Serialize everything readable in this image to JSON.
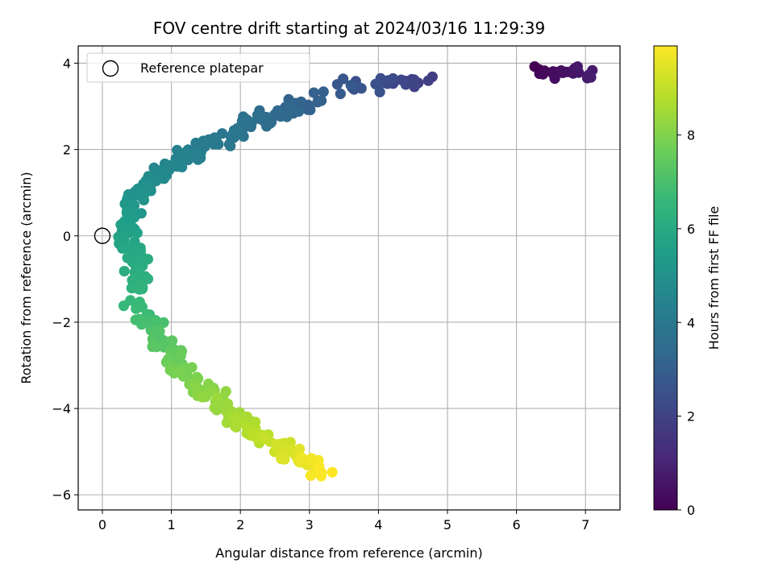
{
  "chart_data": {
    "type": "scatter",
    "title": "FOV centre drift starting at 2024/03/16 11:29:39",
    "xlabel": "Angular distance from reference (arcmin)",
    "ylabel": "Rotation from reference (arcmin)",
    "xlim": [
      -0.35,
      7.5
    ],
    "ylim": [
      -6.35,
      4.4
    ],
    "xticks": [
      0,
      1,
      2,
      3,
      4,
      5,
      6,
      7
    ],
    "yticks": [
      -6,
      -4,
      -2,
      0,
      2,
      4
    ],
    "grid": true,
    "legend": {
      "placement": "top-left",
      "entries": [
        "Reference platepar"
      ]
    },
    "reference_point": {
      "x": 0,
      "y": 0
    },
    "colorbar": {
      "label": "Hours from first FF file",
      "colormap": "viridis",
      "range": [
        0,
        9.9
      ],
      "ticks": [
        0,
        2,
        4,
        6,
        8
      ]
    },
    "colormap_stops": [
      "#440154",
      "#482878",
      "#3e4989",
      "#31688e",
      "#26828e",
      "#1f9e89",
      "#35b779",
      "#6ece58",
      "#b5de2b",
      "#fde725"
    ],
    "segments": [
      {
        "x0": 6.25,
        "y0": 3.8,
        "x1": 7.1,
        "y1": 3.75,
        "h0": 0.0,
        "h1": 0.8,
        "n": 24,
        "sx": 0.12,
        "sy": 0.12
      },
      {
        "x0": 4.75,
        "y0": 3.6,
        "x1": 3.4,
        "y1": 3.45,
        "h0": 1.8,
        "h1": 2.8,
        "n": 28,
        "sx": 0.2,
        "sy": 0.13
      },
      {
        "x0": 3.1,
        "y0": 3.2,
        "x1": 1.2,
        "y1": 1.9,
        "h0": 3.0,
        "h1": 4.3,
        "n": 90,
        "sx": 0.12,
        "sy": 0.15
      },
      {
        "x0": 1.2,
        "y0": 1.9,
        "x1": 0.5,
        "y1": 1.0,
        "h0": 4.3,
        "h1": 5.0,
        "n": 40,
        "sx": 0.12,
        "sy": 0.13
      },
      {
        "x0": 0.5,
        "y0": 1.0,
        "x1": 0.3,
        "y1": -0.2,
        "h0": 5.0,
        "h1": 5.8,
        "n": 45,
        "sx": 0.12,
        "sy": 0.15
      },
      {
        "x0": 0.4,
        "y0": -0.2,
        "x1": 0.6,
        "y1": -1.3,
        "h0": 5.8,
        "h1": 6.4,
        "n": 35,
        "sx": 0.12,
        "sy": 0.13
      },
      {
        "x0": 0.5,
        "y0": -1.6,
        "x1": 1.2,
        "y1": -3.2,
        "h0": 6.6,
        "h1": 7.8,
        "n": 60,
        "sx": 0.15,
        "sy": 0.15
      },
      {
        "x0": 1.2,
        "y0": -3.2,
        "x1": 2.2,
        "y1": -4.6,
        "h0": 7.8,
        "h1": 8.8,
        "n": 70,
        "sx": 0.15,
        "sy": 0.18
      },
      {
        "x0": 2.2,
        "y0": -4.6,
        "x1": 3.2,
        "y1": -5.5,
        "h0": 8.8,
        "h1": 9.9,
        "n": 45,
        "sx": 0.15,
        "sy": 0.15
      }
    ]
  }
}
